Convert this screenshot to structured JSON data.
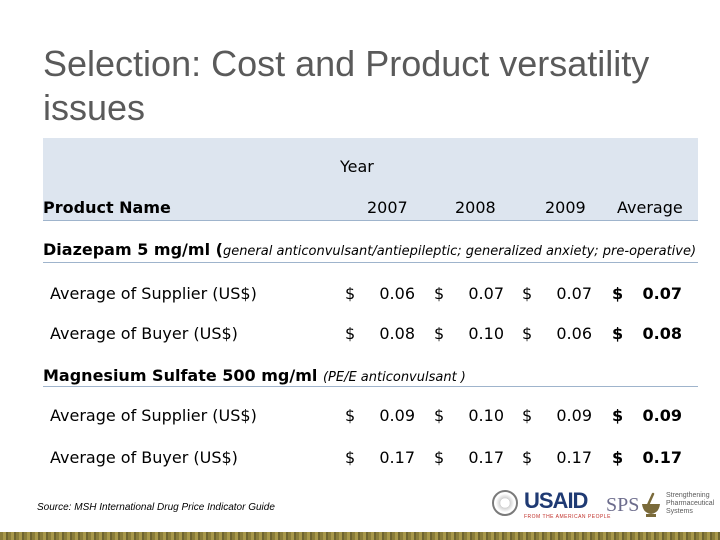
{
  "title": "Selection: Cost and Product versatility issues",
  "header": {
    "year_label": "Year",
    "product_name_label": "Product Name",
    "columns": [
      "2007",
      "2008",
      "2009",
      "Average"
    ]
  },
  "sections": [
    {
      "name": "Diazepam 5 mg/ml (",
      "description": "general anticonvulsant/antiepileptic; generalized anxiety; pre-operative)",
      "rows": [
        {
          "label": "Average of Supplier (US$)",
          "currency": "$",
          "values": [
            "0.06",
            "0.07",
            "0.07",
            "0.07"
          ]
        },
        {
          "label": "Average of Buyer (US$)",
          "currency": "$",
          "values": [
            "0.08",
            "0.10",
            "0.06",
            "0.08"
          ]
        }
      ]
    },
    {
      "name": "Magnesium Sulfate 500 mg/ml ",
      "description": "(PE/E anticonvulsant )",
      "rows": [
        {
          "label": "Average of Supplier (US$)",
          "currency": "$",
          "values": [
            "0.09",
            "0.10",
            "0.09",
            "0.09"
          ]
        },
        {
          "label": "Average of Buyer (US$)",
          "currency": "$",
          "values": [
            "0.17",
            "0.17",
            "0.17",
            "0.17"
          ]
        }
      ]
    }
  ],
  "source": "Source: MSH International Drug Price Indicator Guide",
  "logos": {
    "usaid": "USAID",
    "usaid_sub": "FROM THE AMERICAN PEOPLE",
    "sps": "SPS",
    "sps_text": "Strengthening Pharmaceutical Systems"
  }
}
